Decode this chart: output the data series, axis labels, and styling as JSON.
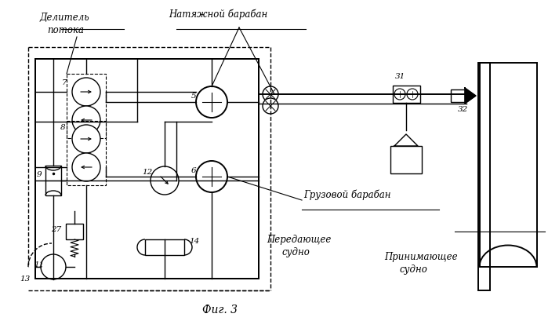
{
  "bg_color": "#ffffff",
  "line_color": "#000000",
  "fig_caption": "Фиг. 3",
  "label_delitel1": "Делитель",
  "label_delitel2": "потока",
  "label_natyazhnoy": "Натяжной барабан",
  "label_gruzovoy": "Грузовой барабан",
  "label_peredayushchee1": "Передающее",
  "label_peredayushchee2": "судно",
  "label_prinimayushchee1": "Принимающее",
  "label_prinimayushchee2": "судно"
}
